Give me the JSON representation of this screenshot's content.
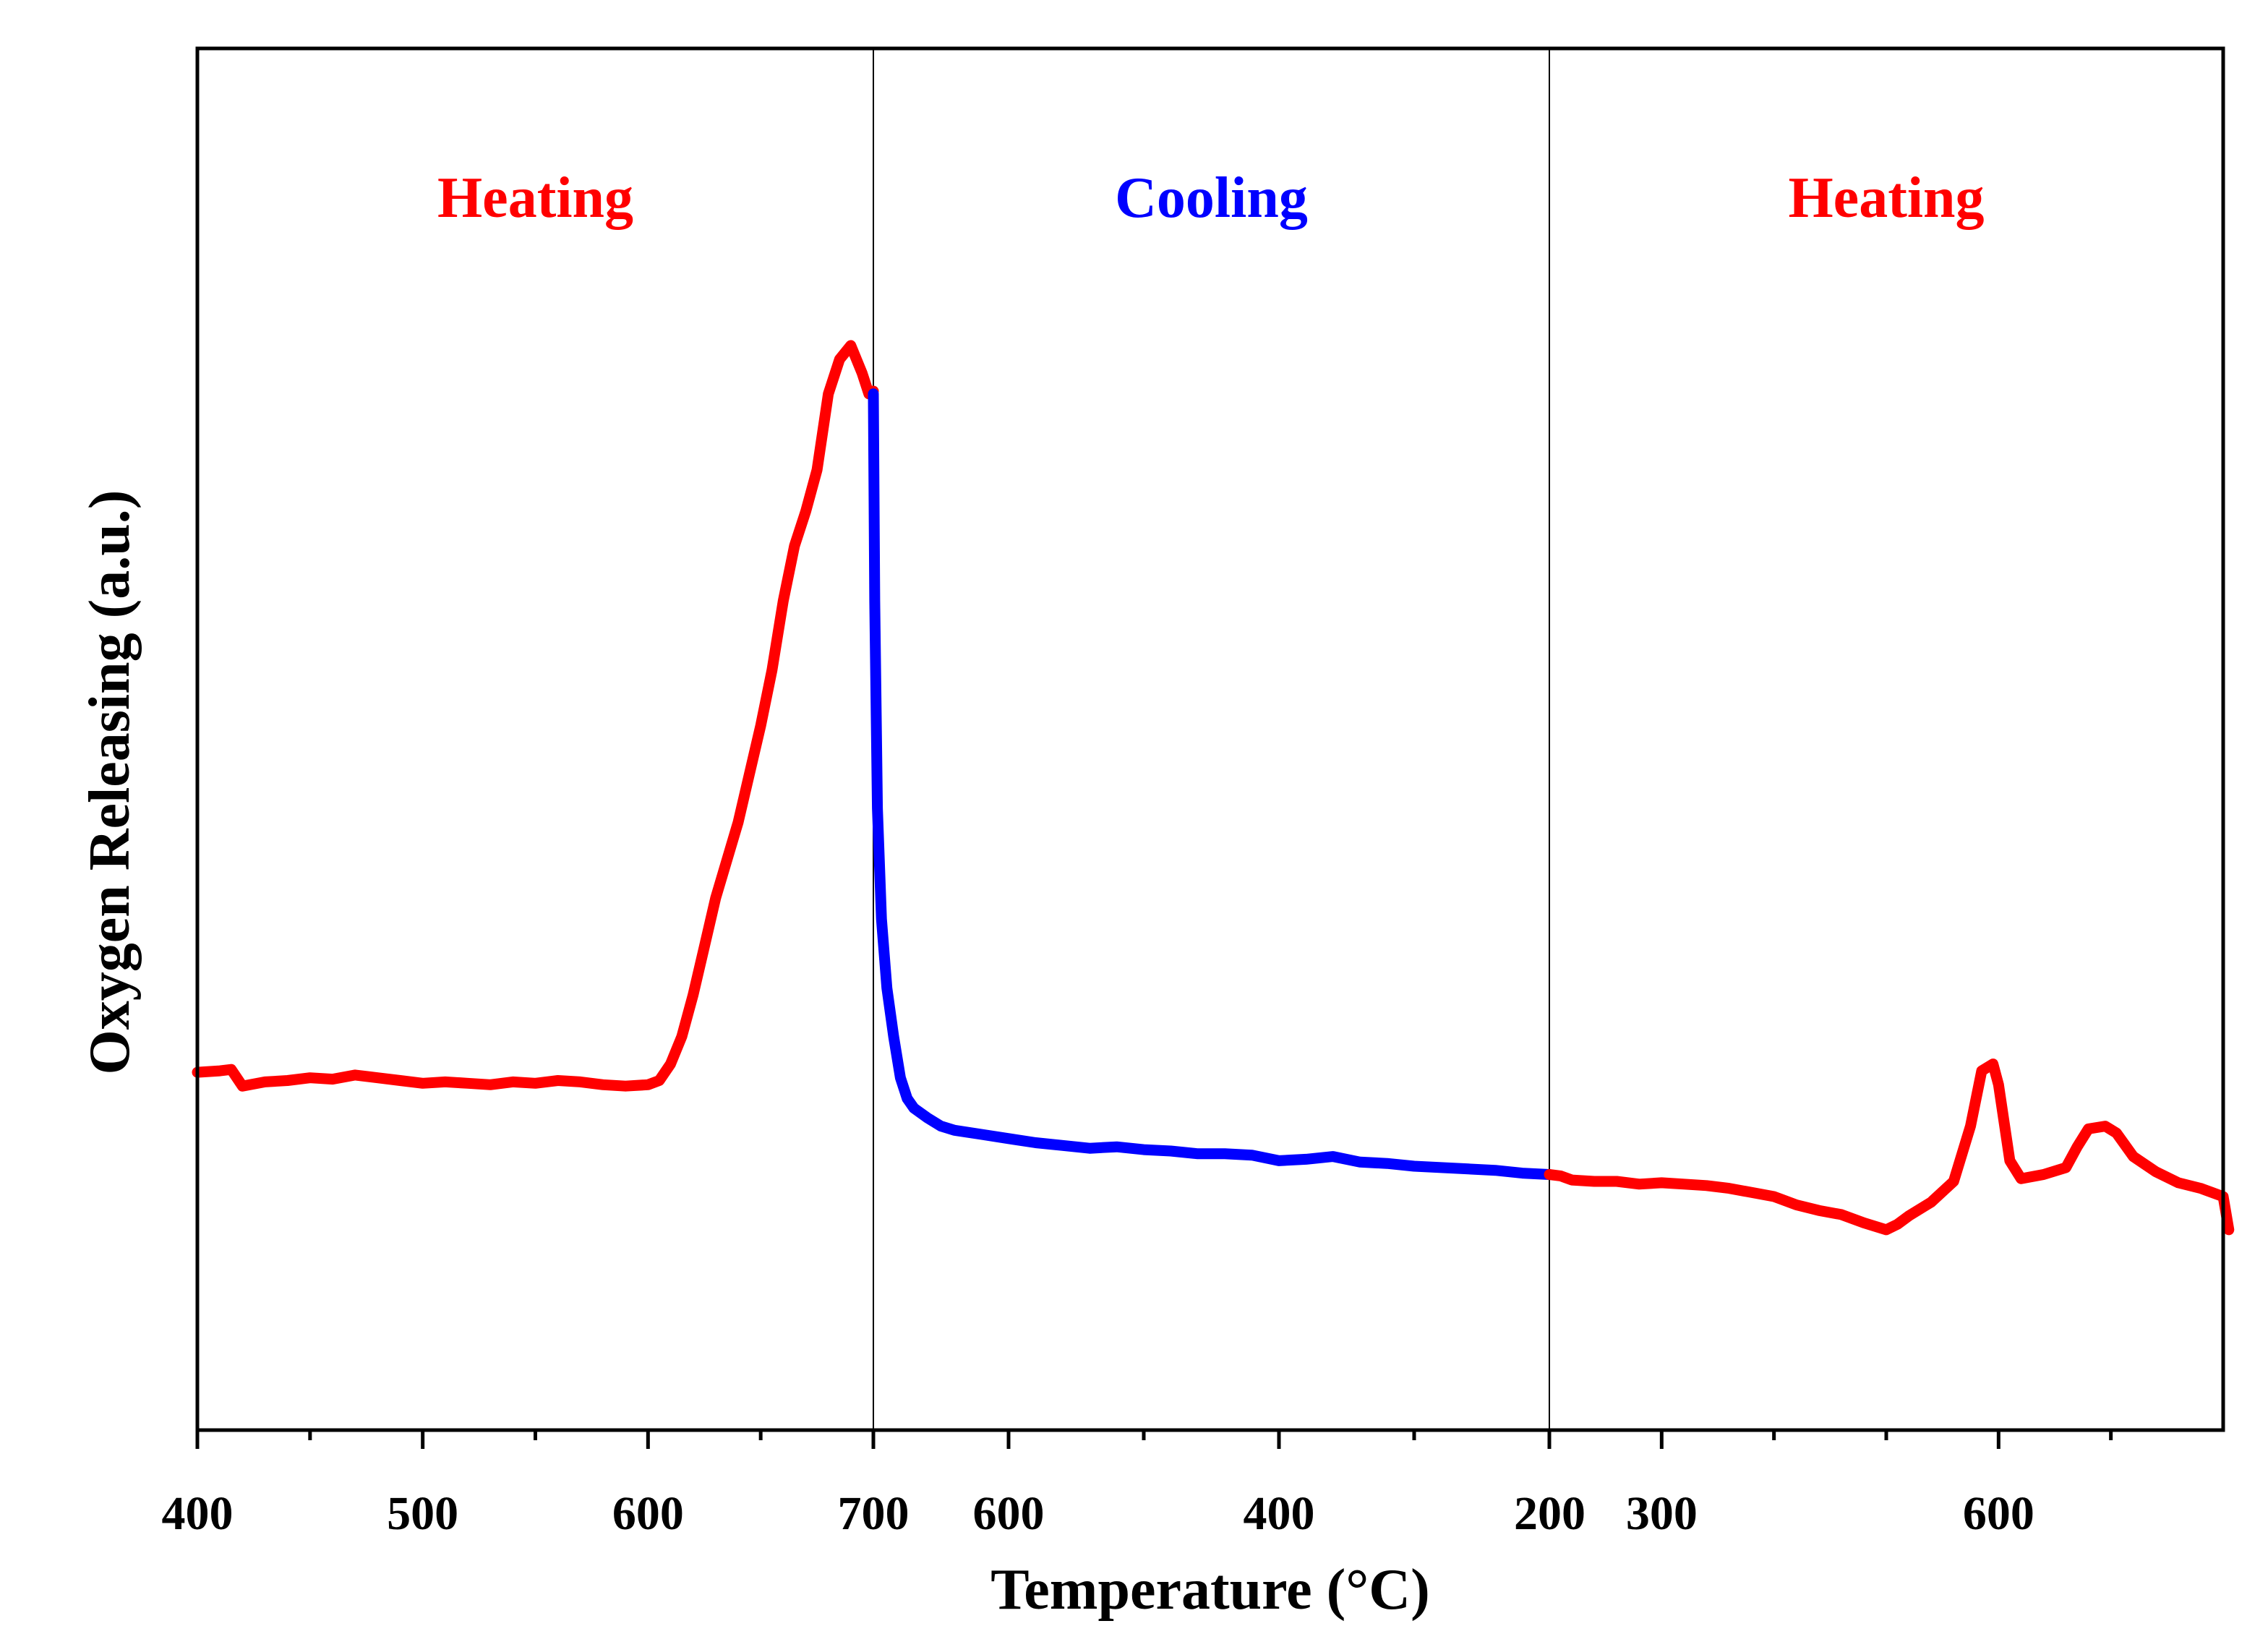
{
  "chart_data": {
    "type": "line",
    "title": "",
    "xlabel": "Temperature (°C)",
    "ylabel": "Oxygen Releasing (a.u.)",
    "ylim": [
      0,
      100
    ],
    "y_ticks_shown": false,
    "grid": false,
    "legend": "none",
    "segments": [
      {
        "name": "Heating",
        "label_text": "Heating",
        "color": "#ff0000",
        "xlim": [
          400,
          700
        ],
        "x_tick_labels": [
          "400",
          "500",
          "600",
          "700"
        ],
        "x_major_ticks": [
          400,
          500,
          600,
          700
        ],
        "x_minor_ticks": [
          450,
          550,
          650
        ],
        "points": [
          [
            400,
            25.9
          ],
          [
            410,
            26.0
          ],
          [
            415,
            26.1
          ],
          [
            420,
            24.9
          ],
          [
            430,
            25.2
          ],
          [
            440,
            25.3
          ],
          [
            450,
            25.5
          ],
          [
            460,
            25.4
          ],
          [
            470,
            25.7
          ],
          [
            480,
            25.5
          ],
          [
            490,
            25.3
          ],
          [
            500,
            25.1
          ],
          [
            510,
            25.2
          ],
          [
            520,
            25.1
          ],
          [
            530,
            25.0
          ],
          [
            540,
            25.2
          ],
          [
            550,
            25.1
          ],
          [
            560,
            25.3
          ],
          [
            570,
            25.2
          ],
          [
            580,
            25.0
          ],
          [
            590,
            24.9
          ],
          [
            600,
            25.0
          ],
          [
            605,
            25.3
          ],
          [
            610,
            26.5
          ],
          [
            615,
            28.5
          ],
          [
            620,
            31.5
          ],
          [
            625,
            35.0
          ],
          [
            630,
            38.5
          ],
          [
            640,
            44.0
          ],
          [
            650,
            51.0
          ],
          [
            655,
            55.0
          ],
          [
            660,
            60.0
          ],
          [
            665,
            64.0
          ],
          [
            670,
            66.5
          ],
          [
            675,
            69.5
          ],
          [
            680,
            75.0
          ],
          [
            685,
            77.5
          ],
          [
            690,
            78.5
          ],
          [
            695,
            76.5
          ],
          [
            698,
            75.0
          ],
          [
            700,
            75.2
          ]
        ]
      },
      {
        "name": "Cooling",
        "label_text": "Cooling",
        "color": "#0000ff",
        "xlim": [
          700,
          200
        ],
        "x_tick_labels": [
          "600",
          "400",
          "200"
        ],
        "x_major_ticks": [
          600,
          400,
          200
        ],
        "x_minor_ticks": [
          700,
          500,
          300
        ],
        "points": [
          [
            700,
            75.0
          ],
          [
            699,
            60.0
          ],
          [
            697,
            45.0
          ],
          [
            694,
            37.0
          ],
          [
            690,
            32.0
          ],
          [
            685,
            28.5
          ],
          [
            680,
            25.5
          ],
          [
            675,
            24.0
          ],
          [
            670,
            23.3
          ],
          [
            660,
            22.6
          ],
          [
            650,
            22.0
          ],
          [
            640,
            21.7
          ],
          [
            620,
            21.4
          ],
          [
            600,
            21.1
          ],
          [
            580,
            20.8
          ],
          [
            560,
            20.6
          ],
          [
            540,
            20.4
          ],
          [
            520,
            20.5
          ],
          [
            500,
            20.3
          ],
          [
            480,
            20.2
          ],
          [
            460,
            20.0
          ],
          [
            440,
            20.0
          ],
          [
            420,
            19.9
          ],
          [
            400,
            19.5
          ],
          [
            380,
            19.6
          ],
          [
            360,
            19.8
          ],
          [
            340,
            19.4
          ],
          [
            320,
            19.3
          ],
          [
            300,
            19.1
          ],
          [
            280,
            19.0
          ],
          [
            260,
            18.9
          ],
          [
            240,
            18.8
          ],
          [
            220,
            18.6
          ],
          [
            200,
            18.5
          ]
        ]
      },
      {
        "name": "Heating",
        "label_text": "Heating",
        "color": "#ff0000",
        "xlim": [
          200,
          800
        ],
        "x_tick_labels": [
          "200",
          "300",
          "600"
        ],
        "x_major_ticks": [
          200,
          300,
          600
        ],
        "x_minor_ticks": [
          400,
          500,
          700
        ],
        "points": [
          [
            200,
            18.5
          ],
          [
            210,
            18.4
          ],
          [
            220,
            18.1
          ],
          [
            240,
            18.0
          ],
          [
            260,
            18.0
          ],
          [
            280,
            17.8
          ],
          [
            300,
            17.9
          ],
          [
            320,
            17.8
          ],
          [
            340,
            17.7
          ],
          [
            360,
            17.5
          ],
          [
            380,
            17.2
          ],
          [
            400,
            16.9
          ],
          [
            420,
            16.3
          ],
          [
            440,
            15.9
          ],
          [
            460,
            15.6
          ],
          [
            480,
            15.0
          ],
          [
            500,
            14.5
          ],
          [
            510,
            14.9
          ],
          [
            520,
            15.5
          ],
          [
            540,
            16.5
          ],
          [
            560,
            18.0
          ],
          [
            575,
            22.0
          ],
          [
            585,
            26.0
          ],
          [
            595,
            26.5
          ],
          [
            600,
            25.0
          ],
          [
            610,
            19.5
          ],
          [
            620,
            18.2
          ],
          [
            640,
            18.5
          ],
          [
            660,
            19.0
          ],
          [
            670,
            20.5
          ],
          [
            680,
            21.8
          ],
          [
            695,
            22.0
          ],
          [
            705,
            21.5
          ],
          [
            720,
            19.8
          ],
          [
            740,
            18.7
          ],
          [
            760,
            17.9
          ],
          [
            780,
            17.5
          ],
          [
            790,
            17.2
          ],
          [
            800,
            16.9
          ],
          [
            805,
            14.5
          ]
        ]
      }
    ]
  }
}
